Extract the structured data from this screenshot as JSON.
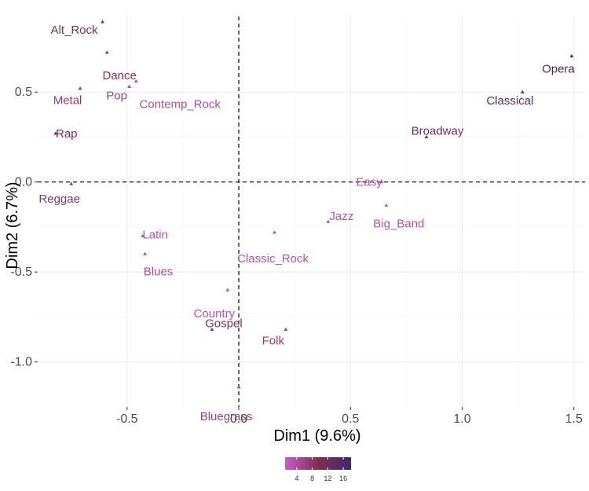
{
  "chart_data": {
    "type": "scatter",
    "title": "",
    "xlabel": "Dim1 (9.6%)",
    "ylabel": "Dim2 (6.7%)",
    "xlim": [
      -0.9,
      1.55
    ],
    "ylim": [
      -1.25,
      0.92
    ],
    "x_ticks": [
      -0.5,
      0.0,
      0.5,
      1.0,
      1.5
    ],
    "x_tick_labels": [
      "-0.5",
      "0.0",
      "0.5",
      "1.0",
      "1.5"
    ],
    "y_ticks": [
      -1.0,
      -0.5,
      0.0,
      0.5
    ],
    "y_tick_labels": [
      "-1.0",
      "-0.5",
      "0.0",
      "0.5"
    ],
    "grid": true,
    "reference_lines": {
      "x": 0,
      "y": 0,
      "style": "dashed"
    },
    "color_scale": {
      "low": "#c85ec7",
      "mid": "#7e2f4f",
      "high": "#3b2a6e",
      "min": 1,
      "max": 18
    },
    "legend": {
      "position": "bottom",
      "ticks": [
        4,
        8,
        12,
        16
      ],
      "tick_labels": [
        "4",
        "8",
        "12",
        "16"
      ]
    },
    "points": [
      {
        "label": "Alt_Rock",
        "x": -0.61,
        "y": 0.89,
        "contrib": 9
      },
      {
        "label": "Dance",
        "x": -0.59,
        "y": 0.72,
        "contrib": 9
      },
      {
        "label": "Contemp_Rock",
        "x": -0.46,
        "y": 0.56,
        "contrib": 4
      },
      {
        "label": "Pop",
        "x": -0.49,
        "y": 0.53,
        "contrib": 6
      },
      {
        "label": "Metal",
        "x": -0.71,
        "y": 0.52,
        "contrib": 7
      },
      {
        "label": "Rap",
        "x": -0.82,
        "y": 0.27,
        "contrib": 10
      },
      {
        "label": "Reggae",
        "x": -0.75,
        "y": -0.01,
        "contrib": 8
      },
      {
        "label": "Latin",
        "x": -0.43,
        "y": -0.3,
        "contrib": 3
      },
      {
        "label": "Blues",
        "x": -0.42,
        "y": -0.4,
        "contrib": 4
      },
      {
        "label": "Classic_Rock",
        "x": 0.16,
        "y": -0.28,
        "contrib": 3
      },
      {
        "label": "Country",
        "x": -0.05,
        "y": -0.6,
        "contrib": 3
      },
      {
        "label": "Gospel",
        "x": -0.12,
        "y": -0.82,
        "contrib": 9
      },
      {
        "label": "Folk",
        "x": 0.21,
        "y": -0.82,
        "contrib": 7
      },
      {
        "label": "Bluegrass",
        "x": 0.0,
        "y": -1.14,
        "contrib": 6
      },
      {
        "label": "Easy",
        "x": 0.64,
        "y": 0.0,
        "contrib": 3
      },
      {
        "label": "Big_Band",
        "x": 0.66,
        "y": -0.13,
        "contrib": 3
      },
      {
        "label": "Jazz",
        "x": 0.4,
        "y": -0.22,
        "contrib": 3
      },
      {
        "label": "Broadway",
        "x": 0.84,
        "y": 0.25,
        "contrib": 10
      },
      {
        "label": "Classical",
        "x": 1.27,
        "y": 0.5,
        "contrib": 14
      },
      {
        "label": "Opera",
        "x": 1.49,
        "y": 0.7,
        "contrib": 17
      }
    ]
  }
}
